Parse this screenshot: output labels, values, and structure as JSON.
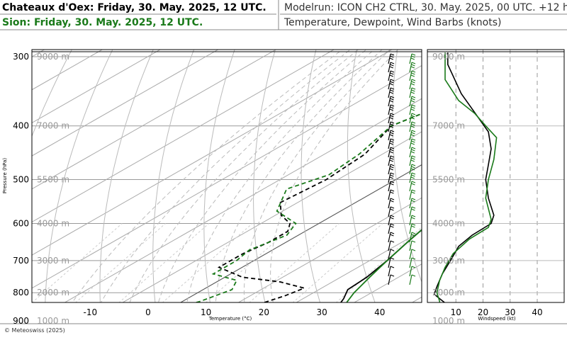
{
  "header": {
    "title_primary": "Chateaux d'Oex: Friday, 30. May. 2025, 12 UTC.",
    "title_secondary": "Sion: Friday, 30. May. 2025, 12 UTC.",
    "model_run": "Modelrun: ICON CH2 CTRL, 30. May. 2025, 00 UTC. +12 h",
    "description": "Temperature, Dewpoint, Wind Barbs (knots)"
  },
  "footer": {
    "copyright": "© Meteoswiss (2025)"
  },
  "colors": {
    "primary": "#000000",
    "secondary": "#1a7a1a",
    "grid": "#999999",
    "altitude": "#9a9a9a"
  },
  "chart_data": [
    {
      "type": "line",
      "subtype": "skew-t",
      "xlabel": "Temperature (°C)",
      "ylabel": "Pressure (hPa)",
      "xlim": [
        -20,
        45
      ],
      "ylim": [
        950,
        295
      ],
      "y_scale": "log",
      "x_ticks": [
        -10,
        0,
        10,
        20,
        30,
        40
      ],
      "y_ticks": [
        300,
        400,
        500,
        600,
        700,
        800,
        900
      ],
      "altitude_labels": [
        {
          "p": 300,
          "label": "9000 m"
        },
        {
          "p": 400,
          "label": "7000 m"
        },
        {
          "p": 500,
          "label": "5500 m"
        },
        {
          "p": 600,
          "label": "4000 m"
        },
        {
          "p": 700,
          "label": "3000 m"
        },
        {
          "p": 800,
          "label": "2000 m"
        },
        {
          "p": 900,
          "label": "1000 m"
        }
      ],
      "grid": true,
      "series": [
        {
          "name": "Chateaux d'Oex",
          "kind": "temperature",
          "color": "#000000",
          "points": [
            [
              -1,
              300
            ],
            [
              5,
              350
            ],
            [
              10,
              400
            ],
            [
              13,
              450
            ],
            [
              16,
              500
            ],
            [
              18,
              550
            ],
            [
              19,
              600
            ],
            [
              21,
              650
            ],
            [
              23,
              700
            ],
            [
              24.5,
              750
            ],
            [
              25,
              790
            ],
            [
              27,
              820
            ],
            [
              29,
              860
            ],
            [
              32,
              880
            ]
          ]
        },
        {
          "name": "Chateaux d'Oex",
          "kind": "dewpoint",
          "color": "#000000",
          "points": [
            [
              -8,
              300
            ],
            [
              -12,
              340
            ],
            [
              -17,
              400
            ],
            [
              -13,
              450
            ],
            [
              -12,
              500
            ],
            [
              -13,
              550
            ],
            [
              -9,
              580
            ],
            [
              -5,
              600
            ],
            [
              -3,
              620
            ],
            [
              -3,
              650
            ],
            [
              -4,
              680
            ],
            [
              -4,
              720
            ],
            [
              3,
              750
            ],
            [
              11,
              765
            ],
            [
              17,
              785
            ],
            [
              16,
              810
            ],
            [
              14,
              840
            ],
            [
              13,
              855
            ],
            [
              12,
              870
            ],
            [
              13,
              880
            ]
          ]
        },
        {
          "name": "Sion",
          "kind": "temperature",
          "color": "#1a7a1a",
          "points": [
            [
              -1,
              300
            ],
            [
              5,
              350
            ],
            [
              10,
              400
            ],
            [
              13,
              450
            ],
            [
              16.5,
              500
            ],
            [
              18,
              550
            ],
            [
              19,
              600
            ],
            [
              21,
              650
            ],
            [
              23,
              700
            ],
            [
              25,
              750
            ],
            [
              27,
              800
            ],
            [
              29.5,
              850
            ],
            [
              32,
              900
            ],
            [
              34.5,
              930
            ],
            [
              36,
              935
            ]
          ]
        },
        {
          "name": "Sion",
          "kind": "dewpoint",
          "color": "#1a7a1a",
          "points": [
            [
              -8,
              300
            ],
            [
              -12,
              340
            ],
            [
              -17,
              400
            ],
            [
              -14,
              450
            ],
            [
              -13,
              490
            ],
            [
              -16,
              520
            ],
            [
              -11,
              570
            ],
            [
              -4,
              600
            ],
            [
              -2,
              630
            ],
            [
              -4,
              670
            ],
            [
              -3,
              700
            ],
            [
              -3,
              740
            ],
            [
              3,
              760
            ],
            [
              5,
              790
            ],
            [
              3,
              830
            ],
            [
              0,
              860
            ],
            [
              -3,
              880
            ],
            [
              -1,
              900
            ],
            [
              1,
              925
            ],
            [
              6,
              935
            ]
          ]
        }
      ]
    },
    {
      "type": "line",
      "subtype": "wind-speed-profile",
      "xlabel": "Windspeed (kt)",
      "xlim": [
        0,
        50
      ],
      "ylim": [
        950,
        295
      ],
      "y_scale": "log",
      "x_ticks": [
        10,
        20,
        30,
        40
      ],
      "series": [
        {
          "name": "Chateaux d'Oex",
          "color": "#000000",
          "points": [
            [
              7,
              295
            ],
            [
              7,
              310
            ],
            [
              12,
              350
            ],
            [
              18,
              385
            ],
            [
              22,
              410
            ],
            [
              23,
              440
            ],
            [
              22,
              470
            ],
            [
              21,
              500
            ],
            [
              22,
              540
            ],
            [
              24,
              580
            ],
            [
              23,
              600
            ],
            [
              16,
              630
            ],
            [
              11,
              660
            ],
            [
              8,
              700
            ],
            [
              5,
              740
            ],
            [
              3,
              780
            ],
            [
              2,
              805
            ],
            [
              4,
              820
            ],
            [
              6,
              835
            ],
            [
              4,
              850
            ],
            [
              5,
              880
            ],
            [
              4,
              910
            ],
            [
              3,
              930
            ]
          ]
        },
        {
          "name": "Sion",
          "color": "#1a7a1a",
          "points": [
            [
              6,
              295
            ],
            [
              6,
              330
            ],
            [
              11,
              360
            ],
            [
              17,
              380
            ],
            [
              21,
              400
            ],
            [
              25,
              420
            ],
            [
              24,
              460
            ],
            [
              22,
              500
            ],
            [
              21,
              540
            ],
            [
              23,
              590
            ],
            [
              22,
              610
            ],
            [
              15,
              640
            ],
            [
              9,
              680
            ],
            [
              6,
              720
            ],
            [
              4,
              760
            ],
            [
              3,
              800
            ],
            [
              4,
              830
            ],
            [
              4,
              860
            ],
            [
              3,
              900
            ],
            [
              1,
              935
            ]
          ]
        }
      ]
    }
  ]
}
